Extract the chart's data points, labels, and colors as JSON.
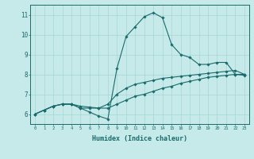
{
  "xlabel": "Humidex (Indice chaleur)",
  "xlim": [
    -0.5,
    23.5
  ],
  "ylim": [
    5.5,
    11.5
  ],
  "yticks": [
    6,
    7,
    8,
    9,
    10,
    11
  ],
  "xticks": [
    0,
    1,
    2,
    3,
    4,
    5,
    6,
    7,
    8,
    9,
    10,
    11,
    12,
    13,
    14,
    15,
    16,
    17,
    18,
    19,
    20,
    21,
    22,
    23
  ],
  "background_color": "#c6e9e9",
  "line_color": "#1a6b6b",
  "grid_color": "#a8d4d4",
  "series": {
    "line1": [
      6.0,
      6.2,
      6.4,
      6.5,
      6.5,
      6.3,
      6.1,
      5.9,
      5.75,
      8.3,
      9.9,
      10.4,
      10.9,
      11.1,
      10.85,
      9.5,
      9.0,
      8.85,
      8.5,
      8.5,
      8.6,
      8.6,
      8.0,
      8.0
    ],
    "line2": [
      6.0,
      6.2,
      6.4,
      6.5,
      6.5,
      6.3,
      6.3,
      6.3,
      6.5,
      7.0,
      7.3,
      7.5,
      7.6,
      7.7,
      7.8,
      7.85,
      7.9,
      7.95,
      8.0,
      8.05,
      8.1,
      8.15,
      8.2,
      8.0
    ],
    "line3": [
      6.0,
      6.2,
      6.4,
      6.5,
      6.5,
      6.4,
      6.35,
      6.3,
      6.3,
      6.5,
      6.7,
      6.9,
      7.0,
      7.15,
      7.3,
      7.4,
      7.55,
      7.65,
      7.75,
      7.85,
      7.9,
      7.95,
      8.0,
      7.95
    ]
  }
}
